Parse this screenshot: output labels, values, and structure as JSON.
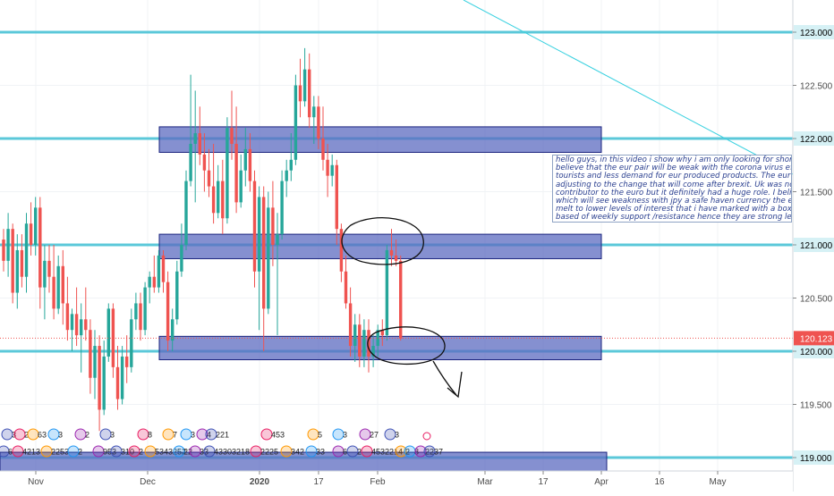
{
  "colors": {
    "up": "#26a69a",
    "down": "#ef5350",
    "level_line": "#5bc8d9",
    "zone_fill": "#5c6bc0",
    "zone_border": "#1a237e",
    "trend_line": "#3ad1e0",
    "price_badge": "#ef5350",
    "axis_text": "#4a4a4a",
    "drawing": "#111111"
  },
  "chart_data": {
    "type": "candlestick",
    "x_axis": {
      "tick_labels": [
        "Nov",
        "Dec",
        "2020",
        "17",
        "Feb",
        "Mar",
        "17",
        "Apr",
        "16",
        "May"
      ]
    },
    "y_axis": {
      "range": [
        118.8,
        123.45
      ],
      "tick_labels": [
        "123.000",
        "122.500",
        "122.000",
        "121.500",
        "121.000",
        "120.500",
        "120.000",
        "119.500",
        "119.000"
      ],
      "tick_values": [
        123.0,
        122.5,
        122.0,
        121.5,
        121.0,
        120.5,
        120.0,
        119.5,
        119.0
      ],
      "highlighted_levels": [
        123.0,
        122.0,
        121.0,
        120.0,
        119.0
      ]
    },
    "current_price": {
      "value": 120.123,
      "label": "120.123"
    },
    "zones": [
      {
        "from": 121.87,
        "to": 122.11
      },
      {
        "from": 120.87,
        "to": 121.1
      },
      {
        "from": 119.92,
        "to": 120.14
      },
      {
        "from": 118.82,
        "to": 119.05
      }
    ],
    "candles": [
      {
        "o": 121.05,
        "h": 121.15,
        "l": 120.75,
        "c": 120.85
      },
      {
        "o": 120.85,
        "h": 121.3,
        "l": 120.7,
        "c": 121.15
      },
      {
        "o": 121.15,
        "h": 121.2,
        "l": 120.45,
        "c": 120.55
      },
      {
        "o": 120.55,
        "h": 121.1,
        "l": 120.4,
        "c": 120.95
      },
      {
        "o": 120.95,
        "h": 121.1,
        "l": 120.6,
        "c": 120.7
      },
      {
        "o": 120.7,
        "h": 121.3,
        "l": 120.55,
        "c": 121.2
      },
      {
        "o": 121.2,
        "h": 121.4,
        "l": 120.9,
        "c": 121.0
      },
      {
        "o": 121.0,
        "h": 121.45,
        "l": 120.9,
        "c": 121.35
      },
      {
        "o": 121.35,
        "h": 121.45,
        "l": 120.4,
        "c": 120.6
      },
      {
        "o": 120.6,
        "h": 121.0,
        "l": 120.3,
        "c": 120.85
      },
      {
        "o": 120.85,
        "h": 121.0,
        "l": 120.55,
        "c": 120.7
      },
      {
        "o": 120.7,
        "h": 121.0,
        "l": 120.3,
        "c": 120.4
      },
      {
        "o": 120.4,
        "h": 120.9,
        "l": 120.35,
        "c": 120.8
      },
      {
        "o": 120.8,
        "h": 120.95,
        "l": 120.25,
        "c": 120.45
      },
      {
        "o": 120.45,
        "h": 120.7,
        "l": 120.1,
        "c": 120.2
      },
      {
        "o": 120.2,
        "h": 120.4,
        "l": 120.0,
        "c": 120.35
      },
      {
        "o": 120.35,
        "h": 120.6,
        "l": 120.05,
        "c": 120.15
      },
      {
        "o": 120.15,
        "h": 120.45,
        "l": 119.8,
        "c": 120.3
      },
      {
        "o": 120.3,
        "h": 120.6,
        "l": 120.1,
        "c": 120.2
      },
      {
        "o": 120.2,
        "h": 120.3,
        "l": 119.6,
        "c": 119.75
      },
      {
        "o": 119.75,
        "h": 120.2,
        "l": 119.55,
        "c": 120.05
      },
      {
        "o": 120.05,
        "h": 120.15,
        "l": 119.25,
        "c": 119.45
      },
      {
        "o": 119.45,
        "h": 120.1,
        "l": 119.4,
        "c": 119.95
      },
      {
        "o": 119.95,
        "h": 120.45,
        "l": 119.9,
        "c": 120.4
      },
      {
        "o": 120.4,
        "h": 120.45,
        "l": 119.75,
        "c": 119.85
      },
      {
        "o": 119.85,
        "h": 120.05,
        "l": 119.45,
        "c": 119.55
      },
      {
        "o": 119.55,
        "h": 120.05,
        "l": 119.5,
        "c": 119.95
      },
      {
        "o": 119.95,
        "h": 120.15,
        "l": 119.7,
        "c": 119.85
      },
      {
        "o": 119.85,
        "h": 120.4,
        "l": 119.8,
        "c": 120.3
      },
      {
        "o": 120.3,
        "h": 120.55,
        "l": 120.2,
        "c": 120.45
      },
      {
        "o": 120.45,
        "h": 120.55,
        "l": 120.1,
        "c": 120.2
      },
      {
        "o": 120.2,
        "h": 120.65,
        "l": 120.15,
        "c": 120.6
      },
      {
        "o": 120.6,
        "h": 120.75,
        "l": 120.45,
        "c": 120.7
      },
      {
        "o": 120.7,
        "h": 120.9,
        "l": 120.55,
        "c": 120.6
      },
      {
        "o": 120.6,
        "h": 120.95,
        "l": 120.55,
        "c": 120.9
      },
      {
        "o": 120.9,
        "h": 120.95,
        "l": 120.55,
        "c": 120.65
      },
      {
        "o": 120.65,
        "h": 120.75,
        "l": 120.0,
        "c": 120.1
      },
      {
        "o": 120.1,
        "h": 120.4,
        "l": 120.0,
        "c": 120.3
      },
      {
        "o": 120.3,
        "h": 120.85,
        "l": 120.25,
        "c": 120.75
      },
      {
        "o": 120.75,
        "h": 121.2,
        "l": 120.7,
        "c": 121.0
      },
      {
        "o": 121.0,
        "h": 121.7,
        "l": 120.95,
        "c": 121.6
      },
      {
        "o": 121.6,
        "h": 122.6,
        "l": 121.55,
        "c": 121.95
      },
      {
        "o": 121.95,
        "h": 122.45,
        "l": 121.4,
        "c": 122.05
      },
      {
        "o": 122.05,
        "h": 122.3,
        "l": 121.75,
        "c": 121.85
      },
      {
        "o": 121.85,
        "h": 122.05,
        "l": 121.5,
        "c": 121.7
      },
      {
        "o": 121.7,
        "h": 121.9,
        "l": 121.45,
        "c": 121.55
      },
      {
        "o": 121.55,
        "h": 121.95,
        "l": 121.2,
        "c": 121.3
      },
      {
        "o": 121.3,
        "h": 121.75,
        "l": 121.25,
        "c": 121.6
      },
      {
        "o": 121.6,
        "h": 121.8,
        "l": 121.1,
        "c": 121.25
      },
      {
        "o": 121.25,
        "h": 122.2,
        "l": 121.2,
        "c": 122.1
      },
      {
        "o": 122.1,
        "h": 122.45,
        "l": 121.8,
        "c": 121.95
      },
      {
        "o": 121.95,
        "h": 122.3,
        "l": 121.3,
        "c": 121.4
      },
      {
        "o": 121.4,
        "h": 121.85,
        "l": 121.35,
        "c": 121.7
      },
      {
        "o": 121.7,
        "h": 122.1,
        "l": 121.55,
        "c": 121.9
      },
      {
        "o": 121.9,
        "h": 122.05,
        "l": 121.5,
        "c": 121.6
      },
      {
        "o": 121.6,
        "h": 121.7,
        "l": 120.6,
        "c": 120.75
      },
      {
        "o": 120.75,
        "h": 121.55,
        "l": 120.2,
        "c": 121.45
      },
      {
        "o": 121.45,
        "h": 121.55,
        "l": 120.0,
        "c": 120.4
      },
      {
        "o": 120.4,
        "h": 121.5,
        "l": 120.35,
        "c": 121.35
      },
      {
        "o": 121.35,
        "h": 121.6,
        "l": 120.8,
        "c": 121.0
      },
      {
        "o": 121.0,
        "h": 121.3,
        "l": 120.15,
        "c": 121.1
      },
      {
        "o": 121.1,
        "h": 121.7,
        "l": 121.05,
        "c": 121.6
      },
      {
        "o": 121.6,
        "h": 121.8,
        "l": 121.45,
        "c": 121.7
      },
      {
        "o": 121.7,
        "h": 122.05,
        "l": 121.6,
        "c": 121.8
      },
      {
        "o": 121.8,
        "h": 122.6,
        "l": 121.75,
        "c": 122.5
      },
      {
        "o": 122.5,
        "h": 122.75,
        "l": 122.2,
        "c": 122.35
      },
      {
        "o": 122.35,
        "h": 122.85,
        "l": 122.3,
        "c": 122.65
      },
      {
        "o": 122.65,
        "h": 122.8,
        "l": 122.1,
        "c": 122.2
      },
      {
        "o": 122.2,
        "h": 122.4,
        "l": 121.95,
        "c": 122.3
      },
      {
        "o": 122.3,
        "h": 122.4,
        "l": 121.9,
        "c": 122.0
      },
      {
        "o": 122.0,
        "h": 122.3,
        "l": 121.7,
        "c": 121.8
      },
      {
        "o": 121.8,
        "h": 121.95,
        "l": 121.45,
        "c": 121.65
      },
      {
        "o": 121.65,
        "h": 121.85,
        "l": 121.55,
        "c": 121.75
      },
      {
        "o": 121.75,
        "h": 121.8,
        "l": 121.0,
        "c": 121.15
      },
      {
        "o": 121.15,
        "h": 121.2,
        "l": 120.65,
        "c": 120.75
      },
      {
        "o": 120.75,
        "h": 120.9,
        "l": 120.4,
        "c": 120.45
      },
      {
        "o": 120.45,
        "h": 120.6,
        "l": 119.95,
        "c": 120.05
      },
      {
        "o": 120.05,
        "h": 120.35,
        "l": 119.9,
        "c": 120.25
      },
      {
        "o": 120.25,
        "h": 120.35,
        "l": 119.85,
        "c": 119.95
      },
      {
        "o": 119.95,
        "h": 120.3,
        "l": 119.85,
        "c": 120.2
      },
      {
        "o": 120.2,
        "h": 120.3,
        "l": 119.8,
        "c": 119.95
      },
      {
        "o": 119.95,
        "h": 120.15,
        "l": 119.85,
        "c": 120.05
      },
      {
        "o": 120.05,
        "h": 120.25,
        "l": 119.95,
        "c": 120.2
      },
      {
        "o": 120.2,
        "h": 120.3,
        "l": 120.05,
        "c": 120.15
      },
      {
        "o": 120.15,
        "h": 121.0,
        "l": 120.1,
        "c": 120.95
      },
      {
        "o": 120.95,
        "h": 121.15,
        "l": 120.8,
        "c": 120.9
      },
      {
        "o": 120.9,
        "h": 121.05,
        "l": 120.8,
        "c": 120.85
      },
      {
        "o": 120.85,
        "h": 120.9,
        "l": 120.1,
        "c": 120.12
      }
    ]
  },
  "note": {
    "lines": [
      "hello guys, in this video i show  why i am only looking for short",
      "believe that the eur pair will be weak with the corona virus effe",
      "tourists and less demand for eur produced products.  The eur is",
      "adjusting to the change that will come after brexit. Uk was not",
      "contributor to the euro but it definitely had a huge role. I believ",
      "which will see weakness with jpy a safe haven currency the eur",
      "melt to lower levels of interest that i have marked with a box.",
      "based of weekly support /resistance hence they are strong leve"
    ]
  },
  "event_markers": {
    "row1": [
      "3",
      "2",
      "63",
      "3",
      "2",
      "3",
      "8",
      "7",
      "3",
      "4",
      "221",
      "453",
      "5",
      "3",
      "27",
      "3"
    ],
    "row2": [
      "6",
      "4213",
      "2253",
      "2",
      "953",
      "310",
      "2",
      "5343252",
      "22",
      "33",
      "43303218",
      "2225",
      "342",
      "33",
      "6",
      "2",
      "4532214",
      "2",
      "8",
      "22",
      "37"
    ]
  }
}
